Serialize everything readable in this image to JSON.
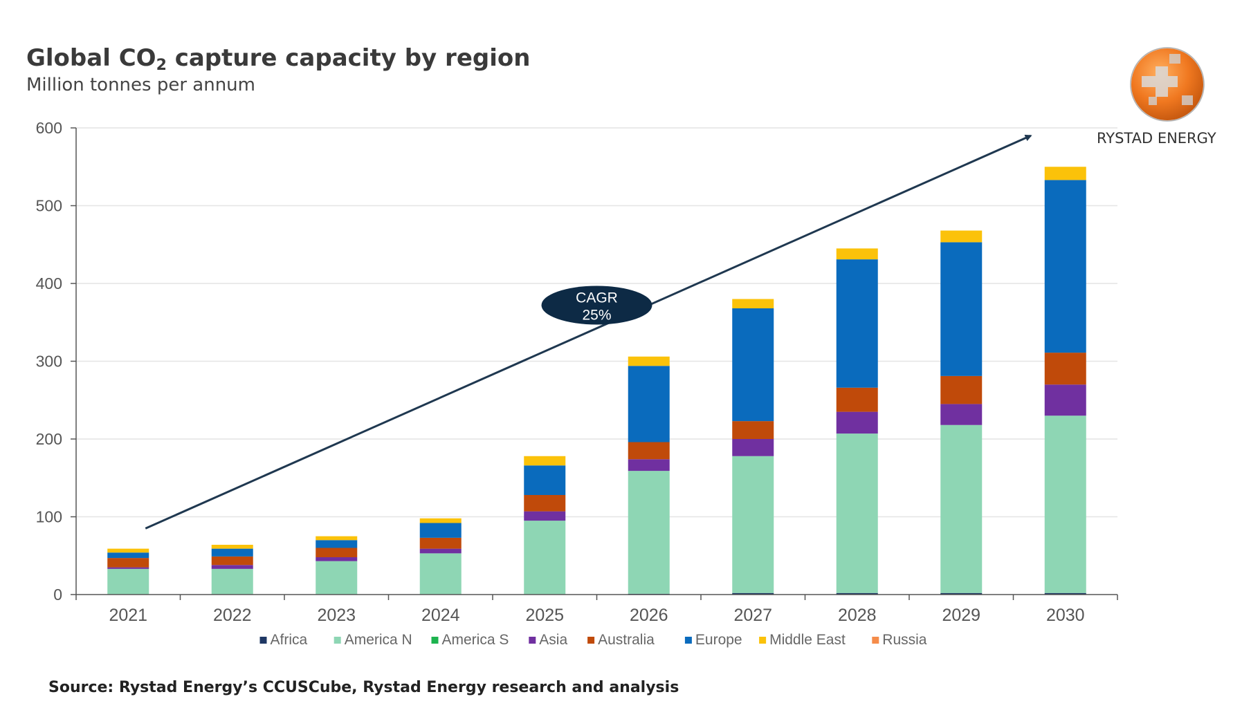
{
  "header": {
    "title_main": "Global CO",
    "title_sub": "2",
    "title_rest": " capture capacity by region",
    "subtitle": "Million tonnes per annum"
  },
  "brand": {
    "name": "RYSTAD ENERGY"
  },
  "source": "Source: Rystad Energy’s CCUSCube, Rystad Energy research and analysis",
  "chart_data": {
    "type": "bar",
    "stacked": true,
    "title": "Global CO2 capture capacity by region",
    "subtitle": "Million tonnes per annum",
    "xlabel": "",
    "ylabel": "",
    "ylim": [
      0,
      600
    ],
    "yticks": [
      0,
      100,
      200,
      300,
      400,
      500,
      600
    ],
    "ytick_labels": [
      "0",
      "100",
      "200",
      "300",
      "400",
      "500",
      "600"
    ],
    "grid": true,
    "legend_position": "bottom",
    "categories": [
      "2021",
      "2022",
      "2023",
      "2024",
      "2025",
      "2026",
      "2027",
      "2028",
      "2029",
      "2030"
    ],
    "series": [
      {
        "name": "Africa",
        "color": "#1f3864",
        "values": [
          0,
          0,
          0,
          0,
          0,
          1,
          2,
          2,
          2,
          2
        ]
      },
      {
        "name": "America N",
        "color": "#8ed6b4",
        "values": [
          33,
          33,
          43,
          53,
          95,
          158,
          176,
          205,
          216,
          228
        ]
      },
      {
        "name": "America S",
        "color": "#1db34f",
        "values": [
          0,
          0,
          0,
          0,
          0,
          0,
          0,
          0,
          0,
          0
        ]
      },
      {
        "name": "Asia",
        "color": "#7030a0",
        "values": [
          2,
          5,
          5,
          6,
          12,
          15,
          22,
          28,
          27,
          40
        ]
      },
      {
        "name": "Australia",
        "color": "#c04a0a",
        "values": [
          12,
          11,
          12,
          14,
          21,
          22,
          23,
          31,
          36,
          41
        ]
      },
      {
        "name": "Europe",
        "color": "#0a6bbd",
        "values": [
          7,
          10,
          10,
          19,
          38,
          98,
          145,
          165,
          172,
          222
        ]
      },
      {
        "name": "Middle East",
        "color": "#fbc20a",
        "values": [
          5,
          5,
          5,
          6,
          12,
          12,
          12,
          14,
          15,
          17
        ]
      },
      {
        "name": "Russia",
        "color": "#f58c4a",
        "values": [
          0,
          0,
          0,
          0,
          0,
          0,
          0,
          0,
          0,
          0
        ]
      }
    ],
    "annotations": [
      {
        "type": "trend-arrow",
        "from": {
          "x": "2021",
          "y": 85
        },
        "to": {
          "x": "2030",
          "y": 590
        }
      },
      {
        "type": "label",
        "line1": "CAGR",
        "line2": "25%"
      }
    ]
  }
}
